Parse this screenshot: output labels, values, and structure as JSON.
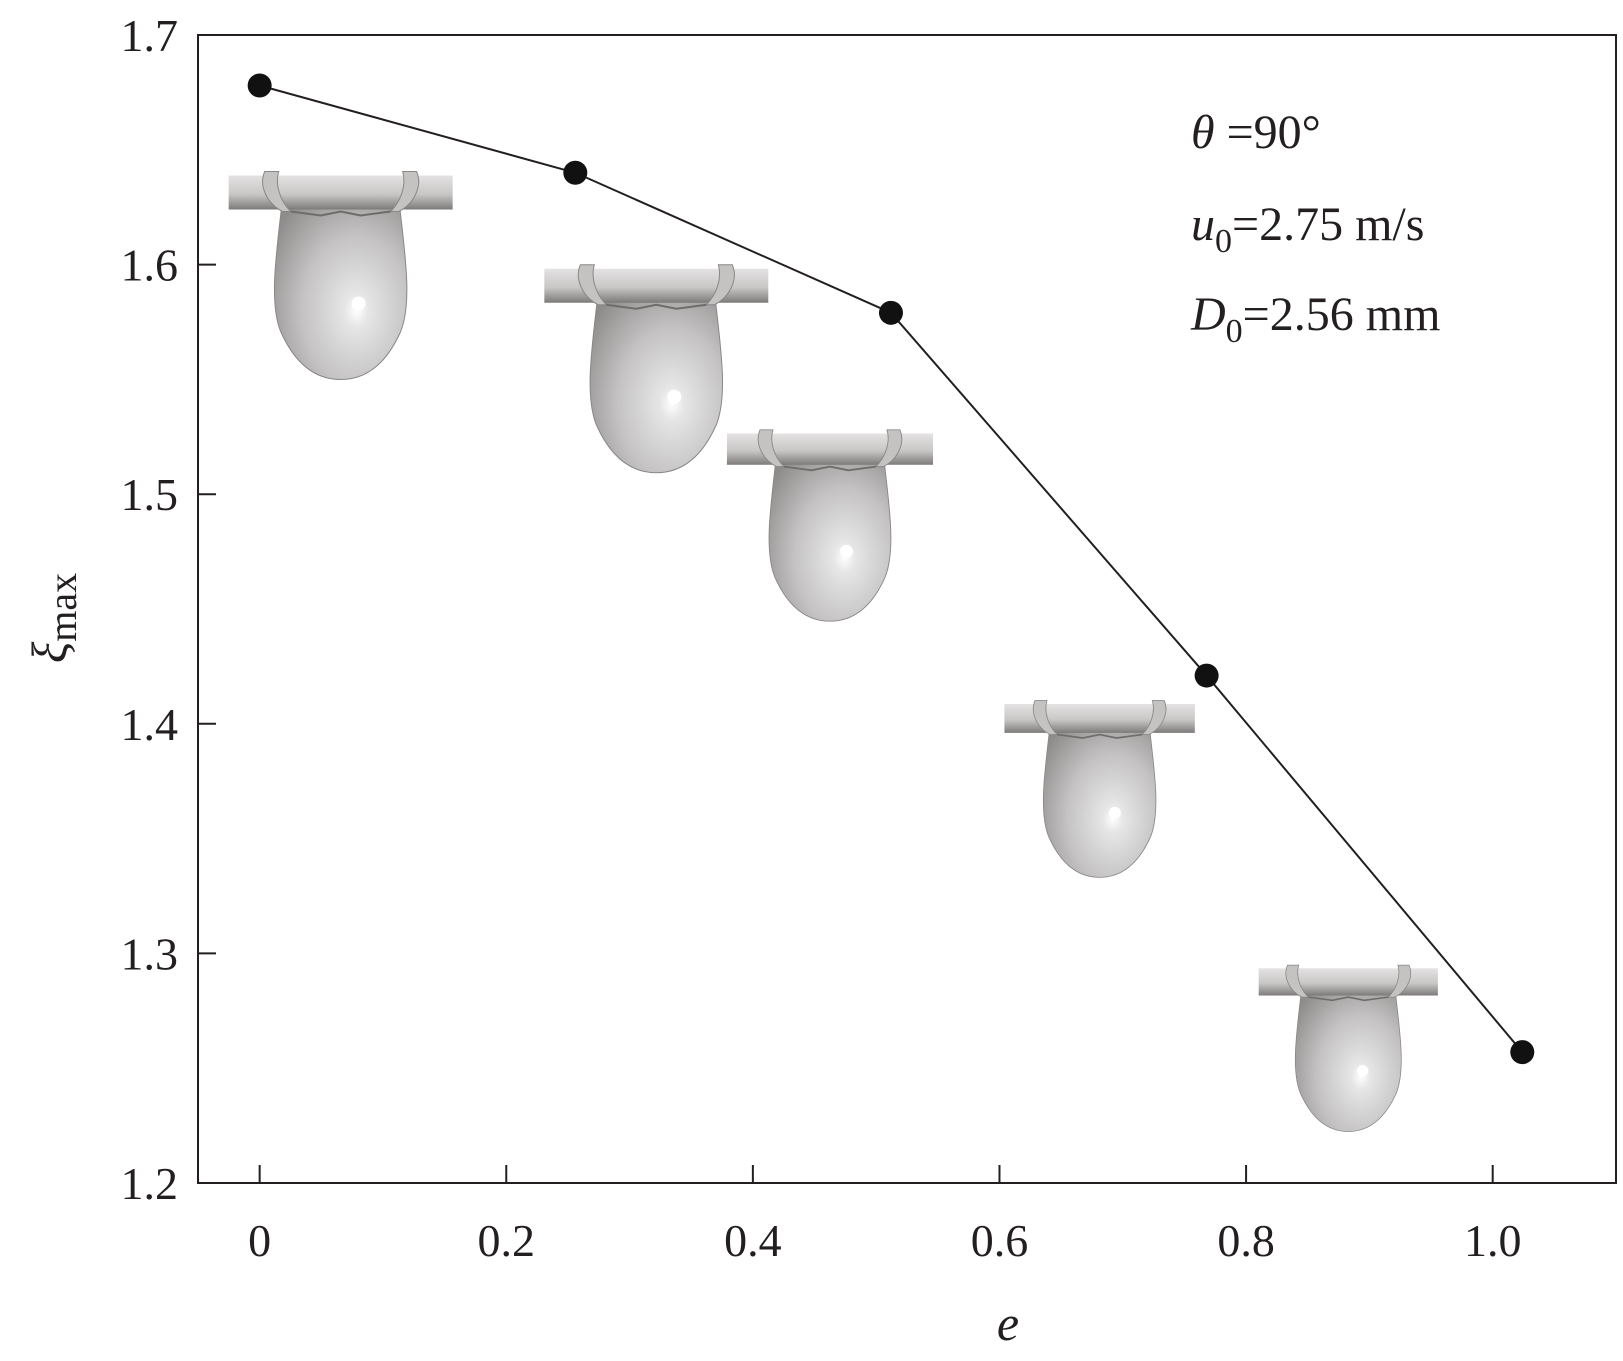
{
  "chart_data": {
    "type": "line",
    "xlabel": "e",
    "ylabel": {
      "main": "ξ",
      "sub": "max"
    },
    "xlim": [
      -0.05,
      1.1
    ],
    "ylim": [
      1.2,
      1.7
    ],
    "x_ticks": [
      0,
      0.2,
      0.4,
      0.6,
      0.8,
      1.0
    ],
    "x_tick_labels": [
      "0",
      "0.2",
      "0.4",
      "0.6",
      "0.8",
      "1.0"
    ],
    "y_ticks": [
      1.2,
      1.3,
      1.4,
      1.5,
      1.6,
      1.7
    ],
    "y_tick_labels": [
      "1.2",
      "1.3",
      "1.4",
      "1.5",
      "1.6",
      "1.7"
    ],
    "grid": false,
    "series": [
      {
        "x": [
          0.0,
          0.256,
          0.512,
          0.768,
          1.024
        ],
        "y": [
          1.678,
          1.64,
          1.579,
          1.421,
          1.257
        ]
      }
    ],
    "annotations": [
      {
        "var": "θ",
        "sub": "",
        "value": " =90°"
      },
      {
        "var": "u",
        "sub": "0",
        "value": "=2.75 m/s"
      },
      {
        "var": "D",
        "sub": "0",
        "value": "=2.56 mm"
      }
    ],
    "insets": [
      {
        "name": "droplet-on-cylinder",
        "e": 0.0
      },
      {
        "name": "droplet-on-cylinder",
        "e": 0.256
      },
      {
        "name": "droplet-on-cylinder",
        "e": 0.512
      },
      {
        "name": "droplet-on-cylinder",
        "e": 0.768
      },
      {
        "name": "droplet-on-cylinder",
        "e": 1.024
      }
    ]
  }
}
